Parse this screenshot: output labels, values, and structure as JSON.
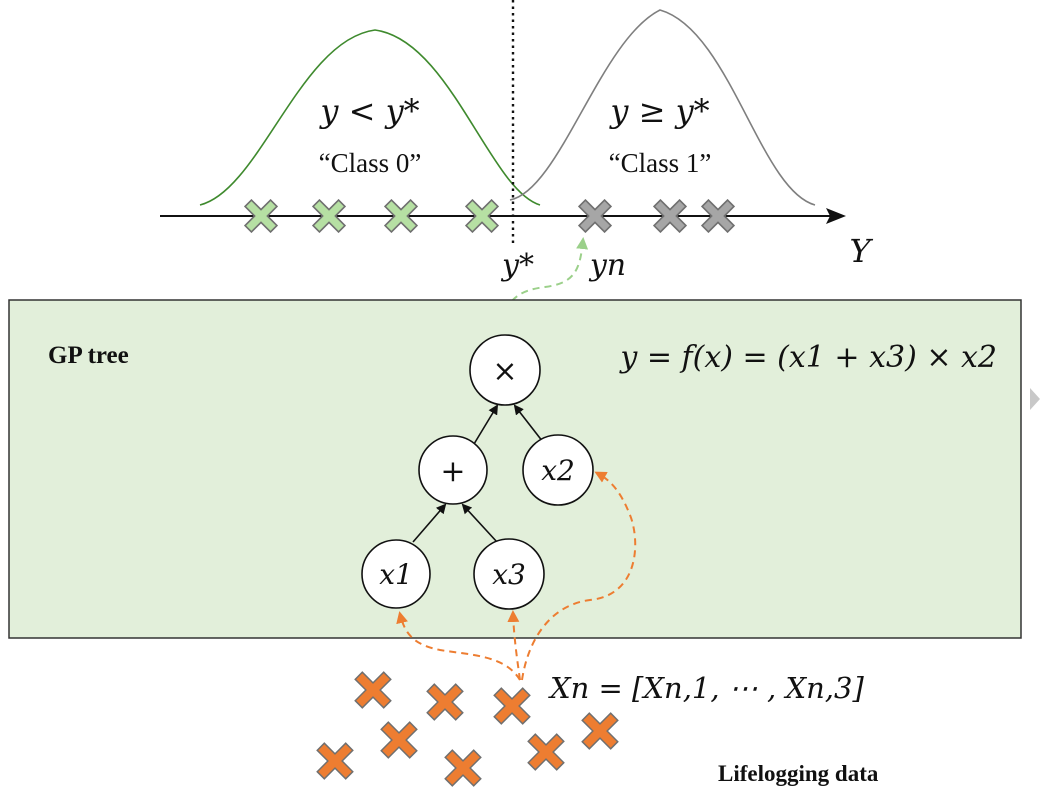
{
  "classes": {
    "left_condition": "y < y*",
    "left_name": "“Class 0”",
    "right_condition": "y ≥ y*",
    "right_name": "“Class 1”"
  },
  "axis": {
    "label": "Y",
    "threshold_label": "y*",
    "sample_label": "yn"
  },
  "gp_panel": {
    "title": "GP tree",
    "formula": "y = f(x) = (x1 + x3) × x2"
  },
  "tree": {
    "root": "×",
    "plus": "+",
    "x1": "x1",
    "x2": "x2",
    "x3": "x3"
  },
  "data": {
    "vector_label": "Xn = [Xn,1, ⋯ , Xn,3]",
    "caption": "Lifelogging data"
  },
  "colors": {
    "green_curve": "#3f8a2e",
    "gray_curve": "#7f7f7f",
    "green_marker": "#b6e0a3",
    "gray_marker": "#a6a6a6",
    "orange_marker": "#ed7d31",
    "panel_fill": "#e2efda",
    "dashed_green": "#9bd08a",
    "dashed_orange": "#ed7d31"
  }
}
